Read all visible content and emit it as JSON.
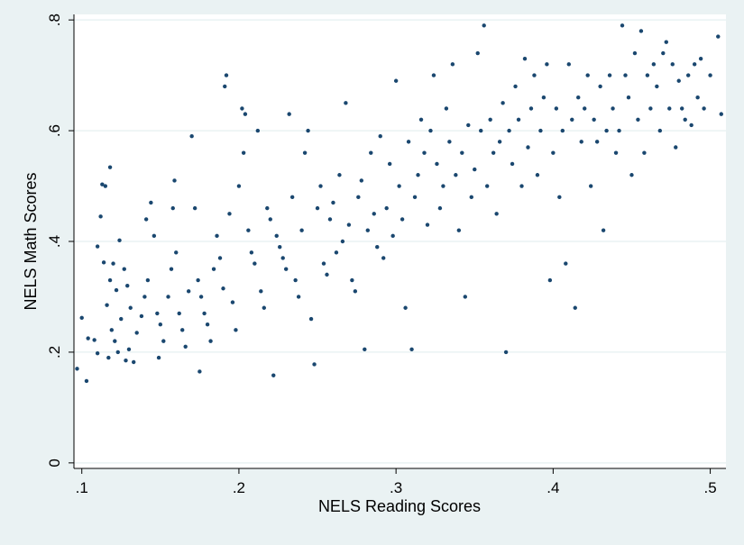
{
  "colors": {
    "outer_background": "#eaf2f3",
    "plot_background": "#ffffff",
    "gridline": "#eaf2f3",
    "marker": "#1a476f",
    "axis": "#000000"
  },
  "chart_data": {
    "type": "scatter",
    "title": "",
    "xlabel": "NELS Reading Scores",
    "ylabel": "NELS Math Scores",
    "xlim": [
      0.095,
      0.51
    ],
    "ylim": [
      -0.01,
      0.81
    ],
    "grid": true,
    "legend": "none",
    "marker_color": "#1a476f",
    "x_ticks": [
      {
        "value": 0.1,
        "label": ".1"
      },
      {
        "value": 0.2,
        "label": ".2"
      },
      {
        "value": 0.3,
        "label": ".3"
      },
      {
        "value": 0.4,
        "label": ".4"
      },
      {
        "value": 0.5,
        "label": ".5"
      }
    ],
    "y_ticks": [
      {
        "value": 0.0,
        "label": "0"
      },
      {
        "value": 0.2,
        "label": ".2"
      },
      {
        "value": 0.4,
        "label": ".4"
      },
      {
        "value": 0.6,
        "label": ".6"
      },
      {
        "value": 0.8,
        "label": ".8"
      }
    ],
    "points": [
      [
        0.097,
        0.17
      ],
      [
        0.103,
        0.148
      ],
      [
        0.1,
        0.262
      ],
      [
        0.104,
        0.225
      ],
      [
        0.108,
        0.222
      ],
      [
        0.11,
        0.198
      ],
      [
        0.11,
        0.391
      ],
      [
        0.112,
        0.445
      ],
      [
        0.113,
        0.503
      ],
      [
        0.115,
        0.5
      ],
      [
        0.118,
        0.534
      ],
      [
        0.114,
        0.362
      ],
      [
        0.116,
        0.285
      ],
      [
        0.118,
        0.33
      ],
      [
        0.12,
        0.36
      ],
      [
        0.122,
        0.312
      ],
      [
        0.119,
        0.24
      ],
      [
        0.121,
        0.22
      ],
      [
        0.117,
        0.19
      ],
      [
        0.123,
        0.2
      ],
      [
        0.125,
        0.26
      ],
      [
        0.127,
        0.35
      ],
      [
        0.124,
        0.402
      ],
      [
        0.129,
        0.32
      ],
      [
        0.131,
        0.28
      ],
      [
        0.128,
        0.185
      ],
      [
        0.133,
        0.182
      ],
      [
        0.13,
        0.205
      ],
      [
        0.135,
        0.235
      ],
      [
        0.138,
        0.265
      ],
      [
        0.14,
        0.3
      ],
      [
        0.142,
        0.33
      ],
      [
        0.144,
        0.47
      ],
      [
        0.141,
        0.44
      ],
      [
        0.146,
        0.41
      ],
      [
        0.148,
        0.27
      ],
      [
        0.15,
        0.25
      ],
      [
        0.152,
        0.22
      ],
      [
        0.149,
        0.19
      ],
      [
        0.155,
        0.3
      ],
      [
        0.157,
        0.35
      ],
      [
        0.159,
        0.51
      ],
      [
        0.158,
        0.46
      ],
      [
        0.16,
        0.38
      ],
      [
        0.162,
        0.27
      ],
      [
        0.164,
        0.24
      ],
      [
        0.166,
        0.21
      ],
      [
        0.168,
        0.31
      ],
      [
        0.17,
        0.59
      ],
      [
        0.172,
        0.46
      ],
      [
        0.174,
        0.33
      ],
      [
        0.176,
        0.3
      ],
      [
        0.175,
        0.165
      ],
      [
        0.178,
        0.27
      ],
      [
        0.18,
        0.25
      ],
      [
        0.182,
        0.22
      ],
      [
        0.184,
        0.35
      ],
      [
        0.186,
        0.41
      ],
      [
        0.188,
        0.37
      ],
      [
        0.19,
        0.315
      ],
      [
        0.192,
        0.7
      ],
      [
        0.191,
        0.68
      ],
      [
        0.194,
        0.45
      ],
      [
        0.196,
        0.29
      ],
      [
        0.198,
        0.24
      ],
      [
        0.2,
        0.5
      ],
      [
        0.202,
        0.64
      ],
      [
        0.204,
        0.63
      ],
      [
        0.203,
        0.56
      ],
      [
        0.206,
        0.42
      ],
      [
        0.208,
        0.38
      ],
      [
        0.21,
        0.36
      ],
      [
        0.212,
        0.6
      ],
      [
        0.214,
        0.31
      ],
      [
        0.216,
        0.28
      ],
      [
        0.218,
        0.46
      ],
      [
        0.22,
        0.44
      ],
      [
        0.222,
        0.158
      ],
      [
        0.224,
        0.41
      ],
      [
        0.226,
        0.39
      ],
      [
        0.228,
        0.37
      ],
      [
        0.23,
        0.35
      ],
      [
        0.232,
        0.63
      ],
      [
        0.234,
        0.48
      ],
      [
        0.236,
        0.33
      ],
      [
        0.238,
        0.3
      ],
      [
        0.24,
        0.42
      ],
      [
        0.242,
        0.56
      ],
      [
        0.244,
        0.6
      ],
      [
        0.246,
        0.26
      ],
      [
        0.248,
        0.178
      ],
      [
        0.25,
        0.46
      ],
      [
        0.252,
        0.5
      ],
      [
        0.254,
        0.36
      ],
      [
        0.256,
        0.34
      ],
      [
        0.258,
        0.44
      ],
      [
        0.26,
        0.47
      ],
      [
        0.262,
        0.38
      ],
      [
        0.264,
        0.52
      ],
      [
        0.266,
        0.4
      ],
      [
        0.268,
        0.65
      ],
      [
        0.27,
        0.43
      ],
      [
        0.272,
        0.33
      ],
      [
        0.274,
        0.31
      ],
      [
        0.276,
        0.48
      ],
      [
        0.278,
        0.51
      ],
      [
        0.28,
        0.205
      ],
      [
        0.282,
        0.42
      ],
      [
        0.284,
        0.56
      ],
      [
        0.286,
        0.45
      ],
      [
        0.288,
        0.39
      ],
      [
        0.29,
        0.59
      ],
      [
        0.292,
        0.37
      ],
      [
        0.294,
        0.46
      ],
      [
        0.296,
        0.54
      ],
      [
        0.298,
        0.41
      ],
      [
        0.3,
        0.69
      ],
      [
        0.302,
        0.5
      ],
      [
        0.304,
        0.44
      ],
      [
        0.306,
        0.28
      ],
      [
        0.308,
        0.58
      ],
      [
        0.31,
        0.205
      ],
      [
        0.312,
        0.48
      ],
      [
        0.314,
        0.52
      ],
      [
        0.316,
        0.62
      ],
      [
        0.318,
        0.56
      ],
      [
        0.32,
        0.43
      ],
      [
        0.322,
        0.6
      ],
      [
        0.324,
        0.7
      ],
      [
        0.326,
        0.54
      ],
      [
        0.328,
        0.46
      ],
      [
        0.33,
        0.5
      ],
      [
        0.332,
        0.64
      ],
      [
        0.334,
        0.58
      ],
      [
        0.336,
        0.72
      ],
      [
        0.338,
        0.52
      ],
      [
        0.34,
        0.42
      ],
      [
        0.342,
        0.56
      ],
      [
        0.344,
        0.3
      ],
      [
        0.346,
        0.61
      ],
      [
        0.348,
        0.48
      ],
      [
        0.35,
        0.53
      ],
      [
        0.352,
        0.74
      ],
      [
        0.354,
        0.6
      ],
      [
        0.356,
        0.79
      ],
      [
        0.358,
        0.5
      ],
      [
        0.36,
        0.62
      ],
      [
        0.362,
        0.56
      ],
      [
        0.364,
        0.45
      ],
      [
        0.366,
        0.58
      ],
      [
        0.368,
        0.65
      ],
      [
        0.37,
        0.2
      ],
      [
        0.372,
        0.6
      ],
      [
        0.374,
        0.54
      ],
      [
        0.376,
        0.68
      ],
      [
        0.378,
        0.62
      ],
      [
        0.38,
        0.5
      ],
      [
        0.382,
        0.73
      ],
      [
        0.384,
        0.57
      ],
      [
        0.386,
        0.64
      ],
      [
        0.388,
        0.7
      ],
      [
        0.39,
        0.52
      ],
      [
        0.392,
        0.6
      ],
      [
        0.394,
        0.66
      ],
      [
        0.396,
        0.72
      ],
      [
        0.398,
        0.33
      ],
      [
        0.4,
        0.56
      ],
      [
        0.402,
        0.64
      ],
      [
        0.404,
        0.48
      ],
      [
        0.406,
        0.6
      ],
      [
        0.408,
        0.36
      ],
      [
        0.41,
        0.72
      ],
      [
        0.412,
        0.62
      ],
      [
        0.414,
        0.28
      ],
      [
        0.416,
        0.66
      ],
      [
        0.418,
        0.58
      ],
      [
        0.42,
        0.64
      ],
      [
        0.422,
        0.7
      ],
      [
        0.424,
        0.5
      ],
      [
        0.426,
        0.62
      ],
      [
        0.428,
        0.58
      ],
      [
        0.43,
        0.68
      ],
      [
        0.432,
        0.42
      ],
      [
        0.434,
        0.6
      ],
      [
        0.436,
        0.7
      ],
      [
        0.438,
        0.64
      ],
      [
        0.44,
        0.56
      ],
      [
        0.442,
        0.6
      ],
      [
        0.444,
        0.79
      ],
      [
        0.446,
        0.7
      ],
      [
        0.448,
        0.66
      ],
      [
        0.45,
        0.52
      ],
      [
        0.452,
        0.74
      ],
      [
        0.454,
        0.62
      ],
      [
        0.456,
        0.78
      ],
      [
        0.458,
        0.56
      ],
      [
        0.46,
        0.7
      ],
      [
        0.462,
        0.64
      ],
      [
        0.464,
        0.72
      ],
      [
        0.466,
        0.68
      ],
      [
        0.468,
        0.6
      ],
      [
        0.47,
        0.74
      ],
      [
        0.472,
        0.76
      ],
      [
        0.474,
        0.64
      ],
      [
        0.476,
        0.72
      ],
      [
        0.478,
        0.57
      ],
      [
        0.48,
        0.69
      ],
      [
        0.482,
        0.64
      ],
      [
        0.484,
        0.62
      ],
      [
        0.486,
        0.7
      ],
      [
        0.488,
        0.61
      ],
      [
        0.49,
        0.72
      ],
      [
        0.492,
        0.66
      ],
      [
        0.494,
        0.73
      ],
      [
        0.496,
        0.64
      ],
      [
        0.5,
        0.7
      ],
      [
        0.505,
        0.77
      ],
      [
        0.507,
        0.63
      ]
    ]
  }
}
